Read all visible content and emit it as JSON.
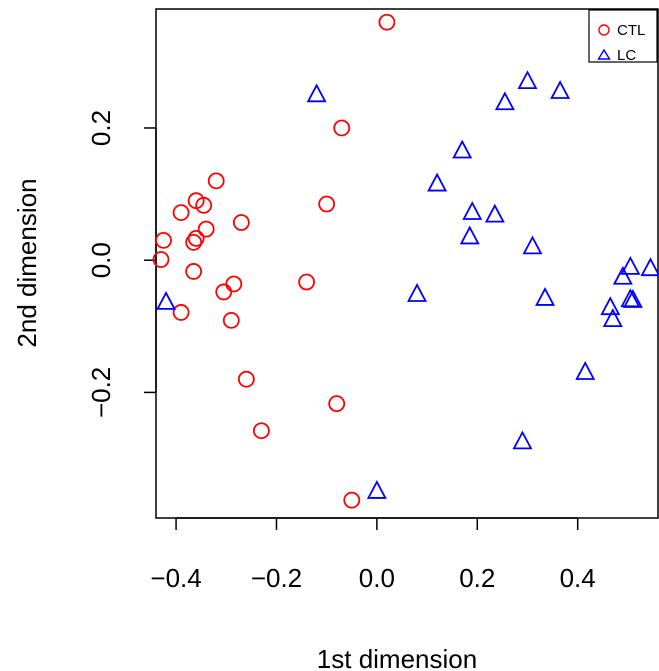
{
  "chart_data": {
    "type": "scatter",
    "title": "",
    "xlabel": "1st dimension",
    "ylabel": "2nd dimension",
    "xlim": [
      -0.44,
      0.56
    ],
    "ylim": [
      -0.39,
      0.38
    ],
    "xticks": [
      -0.4,
      -0.2,
      0.0,
      0.2,
      0.4
    ],
    "xtick_labels": [
      "−0.4",
      "−0.2",
      "0.0",
      "0.2",
      "0.4"
    ],
    "yticks": [
      -0.2,
      0.0,
      0.2
    ],
    "ytick_labels": [
      "−0.2",
      "0.0",
      "0.2"
    ],
    "grid": false,
    "legend_position": "top-right",
    "series": [
      {
        "name": "CTL",
        "marker": "circle",
        "color": "#ff0000",
        "points": [
          [
            0.02,
            0.36
          ],
          [
            -0.07,
            0.2
          ],
          [
            -0.1,
            0.085
          ],
          [
            -0.32,
            0.12
          ],
          [
            -0.36,
            0.09
          ],
          [
            -0.345,
            0.083
          ],
          [
            -0.39,
            0.072
          ],
          [
            -0.27,
            0.057
          ],
          [
            -0.34,
            0.047
          ],
          [
            -0.425,
            0.03
          ],
          [
            -0.36,
            0.033
          ],
          [
            -0.365,
            0.027
          ],
          [
            -0.43,
            0.001
          ],
          [
            -0.365,
            -0.017
          ],
          [
            -0.14,
            -0.033
          ],
          [
            -0.285,
            -0.036
          ],
          [
            -0.305,
            -0.048
          ],
          [
            -0.39,
            -0.079
          ],
          [
            -0.29,
            -0.091
          ],
          [
            -0.26,
            -0.18
          ],
          [
            -0.08,
            -0.217
          ],
          [
            -0.23,
            -0.258
          ],
          [
            -0.05,
            -0.363
          ]
        ]
      },
      {
        "name": "LC",
        "marker": "triangle",
        "color": "#0000ff",
        "points": [
          [
            -0.12,
            0.25
          ],
          [
            0.3,
            0.27
          ],
          [
            0.365,
            0.255
          ],
          [
            0.255,
            0.238
          ],
          [
            0.17,
            0.165
          ],
          [
            0.12,
            0.115
          ],
          [
            0.19,
            0.072
          ],
          [
            0.235,
            0.068
          ],
          [
            0.185,
            0.035
          ],
          [
            0.31,
            0.02
          ],
          [
            0.545,
            -0.013
          ],
          [
            0.505,
            -0.011
          ],
          [
            0.49,
            -0.026
          ],
          [
            0.08,
            -0.052
          ],
          [
            0.335,
            -0.058
          ],
          [
            0.505,
            -0.06
          ],
          [
            0.51,
            -0.061
          ],
          [
            0.465,
            -0.072
          ],
          [
            0.47,
            -0.09
          ],
          [
            -0.42,
            -0.064
          ],
          [
            0.415,
            -0.17
          ],
          [
            0.29,
            -0.275
          ],
          [
            0.0,
            -0.35
          ]
        ]
      }
    ]
  }
}
